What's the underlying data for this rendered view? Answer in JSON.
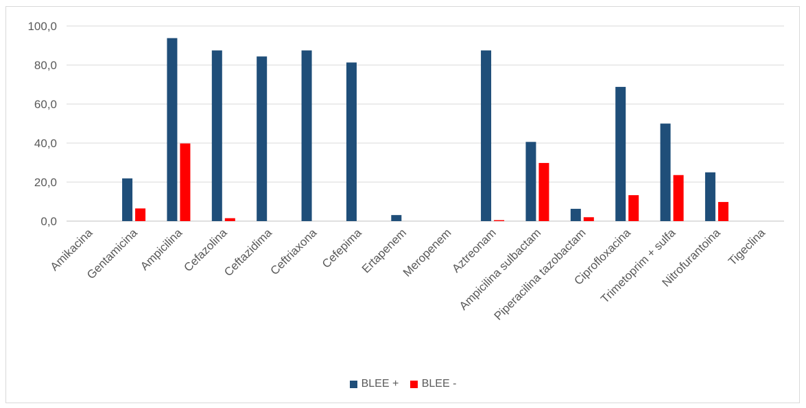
{
  "chart_data": {
    "type": "bar",
    "title": "",
    "xlabel": "",
    "ylabel": "",
    "ylim": [
      0,
      100
    ],
    "yticks": [
      0,
      20,
      40,
      60,
      80,
      100
    ],
    "ytick_labels": [
      "0,0",
      "20,0",
      "40,0",
      "60,0",
      "80,0",
      "100,0"
    ],
    "grid": true,
    "legend_position": "bottom",
    "categories": [
      "Amikacina",
      "Gentamicina",
      "Ampicilina",
      "Cefazolina",
      "Ceftazidima",
      "Ceftriaxona",
      "Cefepima",
      "Ertapenem",
      "Meropenem",
      "Aztreonam",
      "Ampicilina sulbactam",
      "Piperacilina tazobactam",
      "Ciprofloxacina",
      "Trimetoprim + sulfa",
      "Nitrofurantoina",
      "Tigeclina"
    ],
    "series": [
      {
        "name": "BLEE +",
        "color": "#1f4e79",
        "values": [
          0,
          21.9,
          93.8,
          87.5,
          84.4,
          87.5,
          81.3,
          3.1,
          0,
          87.5,
          40.6,
          6.3,
          68.8,
          50.0,
          25.0,
          0
        ]
      },
      {
        "name": "BLEE -",
        "color": "#ff0000",
        "values": [
          0,
          6.5,
          39.8,
          1.5,
          0,
          0,
          0,
          0,
          0,
          0.5,
          29.8,
          2.0,
          13.3,
          23.6,
          9.8,
          0
        ]
      }
    ]
  },
  "legend": {
    "blee_pos": "BLEE +",
    "blee_neg": "BLEE -"
  }
}
